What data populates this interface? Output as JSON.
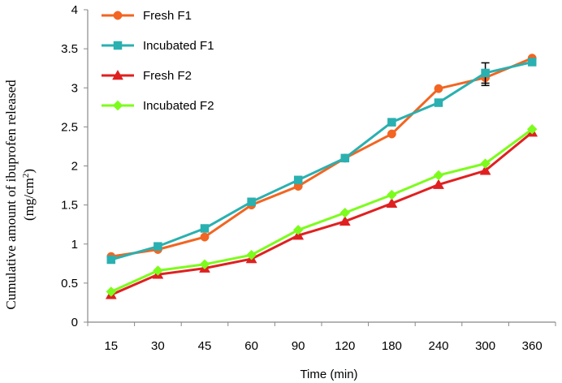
{
  "chart_data": {
    "type": "line",
    "title": "",
    "xlabel": "Time (min)",
    "ylabel": {
      "line1": "Cumulative amount of ibuprofen released",
      "line2_main": "(mg/cm",
      "line2_sup": "2",
      "line2_end": ")"
    },
    "categories": [
      "15",
      "30",
      "45",
      "60",
      "90",
      "120",
      "180",
      "240",
      "300",
      "360"
    ],
    "ylim": [
      0,
      4
    ],
    "yticks": [
      "0",
      "0.5",
      "1",
      "1.5",
      "2",
      "2.5",
      "3",
      "3.5",
      "4"
    ],
    "grid": false,
    "legend_position": "top-left",
    "series": [
      {
        "name": "Fresh F1",
        "color": "#F26522",
        "marker": "circle",
        "values": [
          0.84,
          0.93,
          1.09,
          1.5,
          1.74,
          2.1,
          2.41,
          2.99,
          3.13,
          3.38
        ],
        "error": [
          0,
          0,
          0,
          0,
          0,
          0,
          0,
          0,
          0.1,
          0
        ]
      },
      {
        "name": "Incubated F1",
        "color": "#2AB0B0",
        "marker": "square",
        "values": [
          0.8,
          0.97,
          1.2,
          1.54,
          1.82,
          2.1,
          2.56,
          2.81,
          3.19,
          3.33
        ],
        "error": [
          0,
          0,
          0,
          0,
          0,
          0,
          0,
          0,
          0.13,
          0
        ]
      },
      {
        "name": "Fresh F2",
        "color": "#E02020",
        "marker": "triangle",
        "values": [
          0.35,
          0.61,
          0.69,
          0.81,
          1.11,
          1.29,
          1.52,
          1.76,
          1.94,
          2.43
        ],
        "error": [
          0,
          0,
          0,
          0,
          0,
          0,
          0,
          0,
          0,
          0
        ]
      },
      {
        "name": "Incubated F2",
        "color": "#7CFC1C",
        "marker": "diamond",
        "values": [
          0.39,
          0.66,
          0.74,
          0.86,
          1.18,
          1.4,
          1.63,
          1.88,
          2.03,
          2.47
        ],
        "error": [
          0,
          0,
          0,
          0,
          0,
          0,
          0,
          0,
          0,
          0
        ]
      }
    ]
  }
}
